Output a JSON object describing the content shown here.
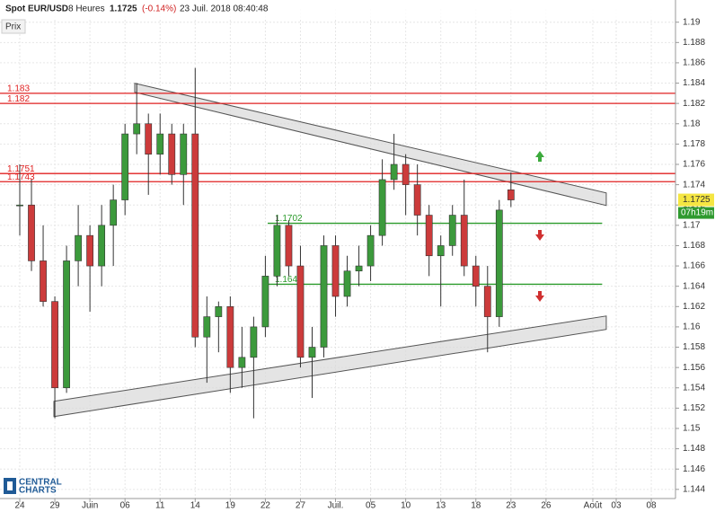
{
  "header": {
    "symbol": "Spot EUR/USD",
    "interval": "8 Heures",
    "price": 1.1725,
    "change": "(-0.14%)",
    "timestamp": "23 Juil. 2018 08:40:48",
    "panel": "Prix",
    "timer": "07h19m",
    "logo_top": "CENTRAL",
    "logo_bottom": "CHARTS"
  },
  "chart_data": {
    "type": "candlestick",
    "open": [
      1.172,
      1.172,
      1.1665,
      1.1625,
      1.154,
      1.1665,
      1.169,
      1.166,
      1.17,
      1.1725,
      1.179,
      1.18,
      1.177,
      1.179,
      1.175,
      1.179,
      1.159,
      1.161,
      1.162,
      1.156,
      1.157,
      1.16,
      1.165,
      1.17,
      1.166,
      1.157,
      1.158,
      1.168,
      1.163,
      1.1655,
      1.166,
      1.169,
      1.1745,
      1.176,
      1.174,
      1.171,
      1.167,
      1.168,
      1.171,
      1.166,
      1.164,
      1.161,
      1.1735
    ],
    "high": [
      1.176,
      1.1745,
      1.17,
      1.163,
      1.168,
      1.172,
      1.17,
      1.172,
      1.174,
      1.18,
      1.184,
      1.181,
      1.181,
      1.18,
      1.18,
      1.1855,
      1.163,
      1.1625,
      1.163,
      1.16,
      1.161,
      1.167,
      1.171,
      1.1705,
      1.168,
      1.16,
      1.169,
      1.169,
      1.167,
      1.168,
      1.17,
      1.1765,
      1.179,
      1.177,
      1.176,
      1.172,
      1.169,
      1.172,
      1.1745,
      1.167,
      1.166,
      1.1725,
      1.1752
    ],
    "low": [
      1.169,
      1.1655,
      1.162,
      1.151,
      1.1535,
      1.164,
      1.1615,
      1.164,
      1.166,
      1.171,
      1.177,
      1.173,
      1.175,
      1.174,
      1.172,
      1.158,
      1.1545,
      1.1575,
      1.1535,
      1.154,
      1.151,
      1.159,
      1.164,
      1.165,
      1.156,
      1.153,
      1.157,
      1.161,
      1.162,
      1.164,
      1.1645,
      1.168,
      1.1735,
      1.171,
      1.169,
      1.165,
      1.162,
      1.167,
      1.165,
      1.162,
      1.1575,
      1.16,
      1.1718
    ],
    "close": [
      1.172,
      1.1665,
      1.1625,
      1.154,
      1.1665,
      1.169,
      1.166,
      1.17,
      1.1725,
      1.179,
      1.18,
      1.177,
      1.179,
      1.175,
      1.179,
      1.159,
      1.161,
      1.162,
      1.156,
      1.157,
      1.16,
      1.165,
      1.17,
      1.166,
      1.157,
      1.158,
      1.168,
      1.163,
      1.1655,
      1.166,
      1.169,
      1.1745,
      1.176,
      1.174,
      1.171,
      1.167,
      1.168,
      1.171,
      1.166,
      1.164,
      1.161,
      1.1715,
      1.1725
    ],
    "up_color": "#3c9a3c",
    "down_color": "#cc3b3b",
    "xlim": [
      -1.69,
      56.07
    ],
    "xticks": [
      {
        "value": 0,
        "label": "24"
      },
      {
        "value": 3,
        "label": "29"
      },
      {
        "value": 6,
        "label": "Juin"
      },
      {
        "value": 9,
        "label": "06"
      },
      {
        "value": 12,
        "label": "11"
      },
      {
        "value": 15,
        "label": "14"
      },
      {
        "value": 18,
        "label": "19"
      },
      {
        "value": 21,
        "label": "22"
      },
      {
        "value": 24,
        "label": "27"
      },
      {
        "value": 27,
        "label": "Juil."
      },
      {
        "value": 30,
        "label": "05"
      },
      {
        "value": 33,
        "label": "10"
      },
      {
        "value": 36,
        "label": "13"
      },
      {
        "value": 39,
        "label": "18"
      },
      {
        "value": 42,
        "label": "23"
      },
      {
        "value": 45,
        "label": "26"
      },
      {
        "value": 49,
        "label": "Août"
      },
      {
        "value": 51,
        "label": "03"
      },
      {
        "value": 54,
        "label": "08"
      }
    ],
    "ylim": [
      1.1431,
      1.1913
    ],
    "yticks": [
      1.144,
      1.146,
      1.148,
      1.15,
      1.152,
      1.154,
      1.156,
      1.158,
      1.16,
      1.162,
      1.164,
      1.166,
      1.168,
      1.17,
      1.172,
      1.174,
      1.176,
      1.178,
      1.18,
      1.182,
      1.184,
      1.186,
      1.188,
      1.19
    ],
    "grid": true,
    "levels": [
      {
        "value": 1.183,
        "color": "#e02020"
      },
      {
        "value": 1.182,
        "color": "#e02020"
      },
      {
        "value": 1.1751,
        "color": "#e02020"
      },
      {
        "value": 1.1743,
        "color": "#e02020"
      },
      {
        "value": 1.1702,
        "color": "#2a9a2a",
        "span": [
          21.2,
          49.8
        ]
      },
      {
        "value": 1.1642,
        "color": "#2a9a2a",
        "span": [
          21.2,
          49.8
        ]
      }
    ],
    "channels": [
      {
        "x": [
          9.83,
          50.15
        ],
        "top": [
          1.18398,
          1.17319
        ],
        "bottom": [
          1.1831,
          1.17195
        ]
      },
      {
        "x": [
          2.92,
          50.15
        ],
        "top": [
          1.15267,
          1.16107
        ],
        "bottom": [
          1.15117,
          1.15975
        ]
      }
    ],
    "price_color": "#f5e642",
    "timer_color": "#2f9a2f"
  }
}
